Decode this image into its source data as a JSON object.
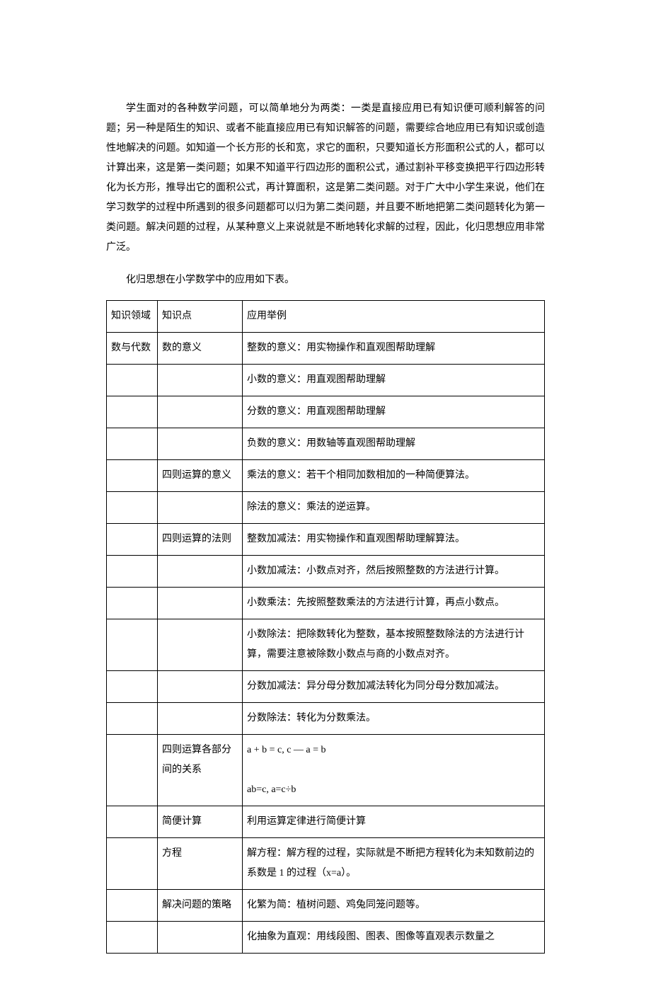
{
  "paragraph1": "学生面对的各种数学问题，可以简单地分为两类：一类是直接应用已有知识便可顺利解答的问题；另一种是陌生的知识、或者不能直接应用已有知识解答的问题，需要综合地应用已有知识或创造性地解决的问题。如知道一个长方形的长和宽，求它的面积，只要知道长方形面积公式的人，都可以计算出来，这是第一类问题；如果不知道平行四边形的面积公式，通过割补平移变换把平行四边形转化为长方形，推导出它的面积公式，再计算面积，这是第二类问题。对于广大中小学生来说，他们在学习数学的过程中所遇到的很多问题都可以归为第二类问题，并且要不断地把第二类问题转化为第一类问题。解决问题的过程，从某种意义上来说就是不断地转化求解的过程，因此，化归思想应用非常广泛。",
  "intro_line": "化归思想在小学数学中的应用如下表。",
  "header": {
    "col1": "知识领域",
    "col2": "知识点",
    "col3": "应用举例"
  },
  "rows": [
    {
      "c1": "数与代数",
      "c2": "数的意义",
      "c3": "整数的意义：用实物操作和直观图帮助理解"
    },
    {
      "c1": "",
      "c2": "",
      "c3": "小数的意义：用直观图帮助理解"
    },
    {
      "c1": "",
      "c2": "",
      "c3": "分数的意义：用直观图帮助理解"
    },
    {
      "c1": "",
      "c2": "",
      "c3": "负数的意义：用数轴等直观图帮助理解"
    },
    {
      "c1": "",
      "c2": "四则运算的意义",
      "c3": "乘法的意义：若干个相同加数相加的一种简便算法。"
    },
    {
      "c1": "",
      "c2": "",
      "c3": "除法的意义：乘法的逆运算。"
    },
    {
      "c1": "",
      "c2": "四则运算的法则",
      "c3": "整数加减法：用实物操作和直观图帮助理解算法。"
    },
    {
      "c1": "",
      "c2": "",
      "c3": "小数加减法：小数点对齐，然后按照整数的方法进行计算。"
    },
    {
      "c1": "",
      "c2": "",
      "c3": "小数乘法：先按照整数乘法的方法进行计算，再点小数点。"
    },
    {
      "c1": "",
      "c2": "",
      "c3": "小数除法：把除数转化为整数，基本按照整数除法的方法进行计算，需要注意被除数小数点与商的小数点对齐。"
    },
    {
      "c1": "",
      "c2": "",
      "c3": "分数加减法：异分母分数加减法转化为同分母分数加减法。"
    },
    {
      "c1": "",
      "c2": "",
      "c3": "分数除法：转化为分数乘法。"
    },
    {
      "c1": "",
      "c2": "四则运算各部分间的关系",
      "c3": "a + b = c,  c  — a  =  b\n\nab=c,  a=c÷b"
    },
    {
      "c1": "",
      "c2": "简便计算",
      "c3": "利用运算定律进行简便计算"
    },
    {
      "c1": "",
      "c2": "方程",
      "c3": "解方程：解方程的过程，实际就是不断把方程转化为未知数前边的系数是 1 的过程（x=a）。"
    },
    {
      "c1": "",
      "c2": "解决问题的策略",
      "c3": "化繁为简：植树问题、鸡兔同笼问题等。"
    },
    {
      "c1": "",
      "c2": "",
      "c3": "化抽象为直观：用线段图、图表、图像等直观表示数量之"
    }
  ]
}
